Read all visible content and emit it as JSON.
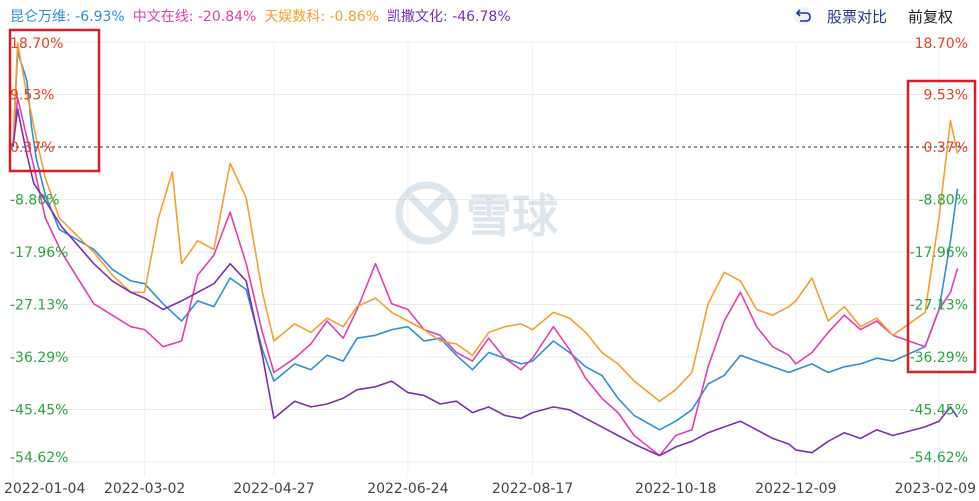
{
  "header": {
    "compare_label": "股票对比",
    "adjust_label": "前复权",
    "toggle_icon": "return-arrow-icon"
  },
  "watermark": {
    "text": "雪球",
    "icon": "snowball-logo-icon"
  },
  "chart_data": {
    "type": "line",
    "y_unit": "%",
    "ylim": [
      -54.62,
      18.7
    ],
    "y_ticks": [
      18.7,
      9.53,
      0.37,
      -8.8,
      -17.96,
      -27.13,
      -36.29,
      -45.45,
      -54.62
    ],
    "y_tick_labels": [
      "18.70%",
      "9.53%",
      "0.37%",
      "-8.80%",
      "-17.96%",
      "-27.13%",
      "-36.29%",
      "-45.45%",
      "-54.62%"
    ],
    "y_tick_colors": [
      "#e2402f",
      "#e2402f",
      "#e2402f",
      "#2aa544",
      "#2aa544",
      "#2aa544",
      "#2aa544",
      "#2aa544",
      "#2aa544"
    ],
    "baseline": 0.37,
    "x_tick_labels": [
      "2022-01-04",
      "2022-03-02",
      "2022-04-27",
      "2022-06-24",
      "2022-08-17",
      "2022-10-18",
      "2022-12-09",
      "2023-02-09"
    ],
    "x_ticks": [
      "2022-01-04",
      "2022-03-02",
      "2022-04-27",
      "2022-06-24",
      "2022-08-17",
      "2022-10-18",
      "2022-12-09",
      "2023-02-09"
    ],
    "grid": "horizontal",
    "series": [
      {
        "name": "昆仑万维",
        "display_value": "-6.93%",
        "color": "#2f8fd8",
        "points": [
          [
            "2022-01-04",
            0.4
          ],
          [
            "2022-01-06",
            17.0
          ],
          [
            "2022-01-10",
            12.0
          ],
          [
            "2022-01-12",
            4.0
          ],
          [
            "2022-01-14",
            -1.5
          ],
          [
            "2022-01-18",
            -8.0
          ],
          [
            "2022-01-24",
            -14.0
          ],
          [
            "2022-02-08",
            -17.5
          ],
          [
            "2022-02-16",
            -21.0
          ],
          [
            "2022-02-24",
            -23.0
          ],
          [
            "2022-03-02",
            -23.5
          ],
          [
            "2022-03-10",
            -27.0
          ],
          [
            "2022-03-18",
            -30.0
          ],
          [
            "2022-03-25",
            -26.5
          ],
          [
            "2022-04-01",
            -27.5
          ],
          [
            "2022-04-08",
            -22.5
          ],
          [
            "2022-04-15",
            -24.5
          ],
          [
            "2022-04-22",
            -35.0
          ],
          [
            "2022-04-27",
            -40.5
          ],
          [
            "2022-05-06",
            -37.5
          ],
          [
            "2022-05-13",
            -38.5
          ],
          [
            "2022-05-20",
            -36.0
          ],
          [
            "2022-05-27",
            -37.0
          ],
          [
            "2022-06-02",
            -33.0
          ],
          [
            "2022-06-10",
            -32.5
          ],
          [
            "2022-06-17",
            -31.5
          ],
          [
            "2022-06-24",
            -31.0
          ],
          [
            "2022-07-01",
            -33.5
          ],
          [
            "2022-07-08",
            -33.0
          ],
          [
            "2022-07-15",
            -36.0
          ],
          [
            "2022-07-22",
            -38.5
          ],
          [
            "2022-07-29",
            -35.5
          ],
          [
            "2022-08-05",
            -36.5
          ],
          [
            "2022-08-12",
            -37.5
          ],
          [
            "2022-08-17",
            -37.0
          ],
          [
            "2022-08-26",
            -33.5
          ],
          [
            "2022-09-02",
            -35.5
          ],
          [
            "2022-09-09",
            -38.0
          ],
          [
            "2022-09-16",
            -39.5
          ],
          [
            "2022-09-23",
            -43.5
          ],
          [
            "2022-09-30",
            -46.5
          ],
          [
            "2022-10-11",
            -49.0
          ],
          [
            "2022-10-18",
            -47.5
          ],
          [
            "2022-10-25",
            -45.5
          ],
          [
            "2022-11-01",
            -41.0
          ],
          [
            "2022-11-08",
            -39.5
          ],
          [
            "2022-11-15",
            -36.0
          ],
          [
            "2022-11-22",
            -37.0
          ],
          [
            "2022-11-29",
            -38.0
          ],
          [
            "2022-12-06",
            -39.0
          ],
          [
            "2022-12-09",
            -38.5
          ],
          [
            "2022-12-16",
            -37.5
          ],
          [
            "2022-12-23",
            -39.0
          ],
          [
            "2022-12-30",
            -38.0
          ],
          [
            "2023-01-06",
            -37.5
          ],
          [
            "2023-01-13",
            -36.5
          ],
          [
            "2023-01-20",
            -37.0
          ],
          [
            "2023-02-03",
            -34.5
          ],
          [
            "2023-02-09",
            -28.0
          ],
          [
            "2023-02-14",
            -16.0
          ],
          [
            "2023-02-17",
            -6.93
          ]
        ]
      },
      {
        "name": "中文在线",
        "display_value": "-20.84%",
        "color": "#e23fb0",
        "points": [
          [
            "2022-01-04",
            0.4
          ],
          [
            "2022-01-06",
            9.0
          ],
          [
            "2022-01-10",
            2.0
          ],
          [
            "2022-01-13",
            -3.0
          ],
          [
            "2022-01-18",
            -12.0
          ],
          [
            "2022-01-25",
            -18.0
          ],
          [
            "2022-02-08",
            -27.0
          ],
          [
            "2022-02-16",
            -29.0
          ],
          [
            "2022-02-24",
            -31.0
          ],
          [
            "2022-03-02",
            -31.5
          ],
          [
            "2022-03-10",
            -34.5
          ],
          [
            "2022-03-18",
            -33.5
          ],
          [
            "2022-03-25",
            -22.0
          ],
          [
            "2022-04-01",
            -18.5
          ],
          [
            "2022-04-08",
            -11.0
          ],
          [
            "2022-04-15",
            -20.0
          ],
          [
            "2022-04-22",
            -32.0
          ],
          [
            "2022-04-27",
            -39.0
          ],
          [
            "2022-05-06",
            -36.5
          ],
          [
            "2022-05-13",
            -34.0
          ],
          [
            "2022-05-20",
            -30.0
          ],
          [
            "2022-05-27",
            -33.0
          ],
          [
            "2022-06-02",
            -28.0
          ],
          [
            "2022-06-10",
            -20.0
          ],
          [
            "2022-06-17",
            -27.0
          ],
          [
            "2022-06-24",
            -28.0
          ],
          [
            "2022-07-01",
            -31.5
          ],
          [
            "2022-07-08",
            -32.5
          ],
          [
            "2022-07-15",
            -35.5
          ],
          [
            "2022-07-22",
            -37.0
          ],
          [
            "2022-07-29",
            -33.0
          ],
          [
            "2022-08-05",
            -36.5
          ],
          [
            "2022-08-12",
            -38.5
          ],
          [
            "2022-08-17",
            -36.5
          ],
          [
            "2022-08-26",
            -31.0
          ],
          [
            "2022-09-02",
            -35.0
          ],
          [
            "2022-09-09",
            -40.0
          ],
          [
            "2022-09-16",
            -43.5
          ],
          [
            "2022-09-23",
            -46.0
          ],
          [
            "2022-09-30",
            -50.0
          ],
          [
            "2022-10-11",
            -53.5
          ],
          [
            "2022-10-18",
            -50.0
          ],
          [
            "2022-10-25",
            -49.0
          ],
          [
            "2022-11-01",
            -38.0
          ],
          [
            "2022-11-08",
            -30.0
          ],
          [
            "2022-11-15",
            -25.0
          ],
          [
            "2022-11-22",
            -31.0
          ],
          [
            "2022-11-29",
            -34.5
          ],
          [
            "2022-12-06",
            -36.0
          ],
          [
            "2022-12-09",
            -37.5
          ],
          [
            "2022-12-16",
            -35.5
          ],
          [
            "2022-12-23",
            -32.0
          ],
          [
            "2022-12-30",
            -29.0
          ],
          [
            "2023-01-06",
            -31.5
          ],
          [
            "2023-01-13",
            -30.0
          ],
          [
            "2023-01-20",
            -32.5
          ],
          [
            "2023-02-03",
            -34.5
          ],
          [
            "2023-02-09",
            -28.0
          ],
          [
            "2023-02-14",
            -25.0
          ],
          [
            "2023-02-17",
            -20.84
          ]
        ]
      },
      {
        "name": "天娱数科",
        "display_value": "-0.86%",
        "color": "#f5a02e",
        "points": [
          [
            "2022-01-04",
            0.4
          ],
          [
            "2022-01-06",
            18.5
          ],
          [
            "2022-01-10",
            9.5
          ],
          [
            "2022-01-12",
            6.0
          ],
          [
            "2022-01-14",
            2.0
          ],
          [
            "2022-01-18",
            -5.0
          ],
          [
            "2022-01-24",
            -12.0
          ],
          [
            "2022-02-08",
            -18.0
          ],
          [
            "2022-02-16",
            -22.0
          ],
          [
            "2022-02-24",
            -25.0
          ],
          [
            "2022-03-02",
            -25.0
          ],
          [
            "2022-03-08",
            -12.0
          ],
          [
            "2022-03-14",
            -4.0
          ],
          [
            "2022-03-18",
            -20.0
          ],
          [
            "2022-03-25",
            -16.0
          ],
          [
            "2022-04-01",
            -17.5
          ],
          [
            "2022-04-08",
            -2.5
          ],
          [
            "2022-04-15",
            -8.5
          ],
          [
            "2022-04-22",
            -25.0
          ],
          [
            "2022-04-27",
            -33.5
          ],
          [
            "2022-05-06",
            -30.5
          ],
          [
            "2022-05-13",
            -32.0
          ],
          [
            "2022-05-20",
            -29.5
          ],
          [
            "2022-05-27",
            -31.0
          ],
          [
            "2022-06-02",
            -27.5
          ],
          [
            "2022-06-10",
            -26.0
          ],
          [
            "2022-06-17",
            -28.5
          ],
          [
            "2022-06-24",
            -30.0
          ],
          [
            "2022-07-01",
            -31.5
          ],
          [
            "2022-07-08",
            -33.5
          ],
          [
            "2022-07-15",
            -34.0
          ],
          [
            "2022-07-22",
            -36.0
          ],
          [
            "2022-07-29",
            -32.0
          ],
          [
            "2022-08-05",
            -31.0
          ],
          [
            "2022-08-12",
            -30.5
          ],
          [
            "2022-08-17",
            -31.5
          ],
          [
            "2022-08-26",
            -28.5
          ],
          [
            "2022-09-02",
            -29.5
          ],
          [
            "2022-09-09",
            -32.0
          ],
          [
            "2022-09-16",
            -35.5
          ],
          [
            "2022-09-23",
            -37.5
          ],
          [
            "2022-09-30",
            -40.5
          ],
          [
            "2022-10-11",
            -44.0
          ],
          [
            "2022-10-18",
            -42.0
          ],
          [
            "2022-10-25",
            -39.0
          ],
          [
            "2022-11-01",
            -27.0
          ],
          [
            "2022-11-08",
            -21.5
          ],
          [
            "2022-11-15",
            -23.0
          ],
          [
            "2022-11-22",
            -28.0
          ],
          [
            "2022-11-29",
            -29.0
          ],
          [
            "2022-12-06",
            -27.5
          ],
          [
            "2022-12-09",
            -26.5
          ],
          [
            "2022-12-16",
            -22.5
          ],
          [
            "2022-12-23",
            -30.0
          ],
          [
            "2022-12-30",
            -27.5
          ],
          [
            "2023-01-06",
            -31.0
          ],
          [
            "2023-01-13",
            -29.5
          ],
          [
            "2023-01-20",
            -32.5
          ],
          [
            "2023-02-03",
            -28.5
          ],
          [
            "2023-02-09",
            -12.0
          ],
          [
            "2023-02-14",
            5.0
          ],
          [
            "2023-02-17",
            -0.86
          ]
        ]
      },
      {
        "name": "凯撒文化",
        "display_value": "-46.78%",
        "color": "#7c2fb0",
        "points": [
          [
            "2022-01-04",
            0.4
          ],
          [
            "2022-01-06",
            7.0
          ],
          [
            "2022-01-10",
            -1.0
          ],
          [
            "2022-01-13",
            -6.0
          ],
          [
            "2022-01-18",
            -9.0
          ],
          [
            "2022-01-25",
            -13.5
          ],
          [
            "2022-02-08",
            -20.0
          ],
          [
            "2022-02-16",
            -23.0
          ],
          [
            "2022-02-24",
            -25.0
          ],
          [
            "2022-03-02",
            -26.0
          ],
          [
            "2022-03-10",
            -28.0
          ],
          [
            "2022-03-18",
            -26.5
          ],
          [
            "2022-03-25",
            -25.0
          ],
          [
            "2022-04-01",
            -23.5
          ],
          [
            "2022-04-08",
            -20.0
          ],
          [
            "2022-04-15",
            -23.0
          ],
          [
            "2022-04-22",
            -36.0
          ],
          [
            "2022-04-27",
            -47.0
          ],
          [
            "2022-05-06",
            -44.0
          ],
          [
            "2022-05-13",
            -45.0
          ],
          [
            "2022-05-20",
            -44.5
          ],
          [
            "2022-05-27",
            -43.5
          ],
          [
            "2022-06-02",
            -42.0
          ],
          [
            "2022-06-10",
            -41.5
          ],
          [
            "2022-06-17",
            -40.5
          ],
          [
            "2022-06-24",
            -42.5
          ],
          [
            "2022-07-01",
            -43.0
          ],
          [
            "2022-07-08",
            -44.5
          ],
          [
            "2022-07-15",
            -44.0
          ],
          [
            "2022-07-22",
            -46.0
          ],
          [
            "2022-07-29",
            -45.0
          ],
          [
            "2022-08-05",
            -46.5
          ],
          [
            "2022-08-12",
            -47.0
          ],
          [
            "2022-08-17",
            -46.0
          ],
          [
            "2022-08-26",
            -45.0
          ],
          [
            "2022-09-02",
            -45.5
          ],
          [
            "2022-09-09",
            -47.0
          ],
          [
            "2022-09-16",
            -48.5
          ],
          [
            "2022-09-23",
            -50.0
          ],
          [
            "2022-09-30",
            -51.5
          ],
          [
            "2022-10-11",
            -53.5
          ],
          [
            "2022-10-18",
            -52.0
          ],
          [
            "2022-10-25",
            -51.0
          ],
          [
            "2022-11-01",
            -49.5
          ],
          [
            "2022-11-08",
            -48.5
          ],
          [
            "2022-11-15",
            -47.5
          ],
          [
            "2022-11-22",
            -49.0
          ],
          [
            "2022-11-29",
            -50.5
          ],
          [
            "2022-12-06",
            -51.5
          ],
          [
            "2022-12-09",
            -52.5
          ],
          [
            "2022-12-16",
            -53.0
          ],
          [
            "2022-12-23",
            -51.0
          ],
          [
            "2022-12-30",
            -49.5
          ],
          [
            "2023-01-06",
            -50.5
          ],
          [
            "2023-01-13",
            -49.0
          ],
          [
            "2023-01-20",
            -50.0
          ],
          [
            "2023-02-03",
            -48.5
          ],
          [
            "2023-02-09",
            -47.5
          ],
          [
            "2023-02-14",
            -45.0
          ],
          [
            "2023-02-17",
            -46.78
          ]
        ]
      }
    ]
  }
}
